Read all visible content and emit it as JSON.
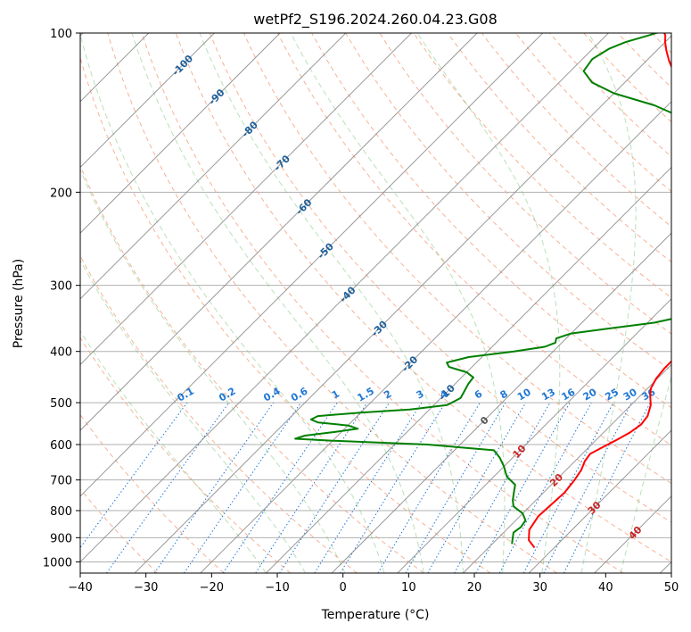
{
  "chart_data": {
    "type": "line",
    "diagram": "skew-t log-p",
    "title": "wetPf2_S196.2024.260.04.23.G08",
    "xlabel": "Temperature (°C)",
    "ylabel": "Pressure (hPa)",
    "xlim": [
      -40,
      50
    ],
    "ylim": [
      1050,
      100
    ],
    "y_scale": "log",
    "grid": true,
    "x_ticks": [
      -40,
      -30,
      -20,
      -10,
      0,
      10,
      20,
      30,
      40,
      50
    ],
    "y_ticks": [
      100,
      200,
      300,
      400,
      500,
      600,
      700,
      800,
      900,
      1000
    ],
    "isotherm_labels": [
      "-100",
      "-90",
      "-80",
      "-70",
      "-60",
      "-50",
      "-40",
      "-30",
      "-20",
      "-10",
      "0",
      "10",
      "20",
      "30",
      "40"
    ],
    "mixing_ratio_labels": [
      "0.1",
      "0.2",
      "0.4",
      "0.6",
      "1",
      "1.5",
      "2",
      "3",
      "4",
      "6",
      "8",
      "10",
      "13",
      "16",
      "20",
      "25",
      "30",
      "36"
    ],
    "series": [
      {
        "key": "temperature",
        "color": "#ff0000",
        "points": [
          [
            27.0,
            940
          ],
          [
            25.0,
            910
          ],
          [
            23.5,
            870
          ],
          [
            22.8,
            820
          ],
          [
            23.0,
            780
          ],
          [
            23.2,
            740
          ],
          [
            22.8,
            700
          ],
          [
            22.3,
            670
          ],
          [
            21.5,
            645
          ],
          [
            21.2,
            625
          ],
          [
            22.2,
            605
          ],
          [
            23.0,
            590
          ],
          [
            24.0,
            570
          ],
          [
            24.5,
            550
          ],
          [
            24.2,
            530
          ],
          [
            23.0,
            505
          ],
          [
            21.5,
            485
          ],
          [
            20.5,
            470
          ],
          [
            19.8,
            450
          ],
          [
            19.5,
            430
          ],
          [
            19.5,
            410
          ],
          [
            19.2,
            395
          ],
          [
            18.5,
            385
          ],
          [
            17.5,
            372
          ],
          [
            16.5,
            358
          ],
          [
            15.0,
            345
          ],
          [
            13.5,
            332
          ],
          [
            12.0,
            318
          ],
          [
            10.5,
            303
          ],
          [
            8.5,
            285
          ],
          [
            6.0,
            262
          ],
          [
            3.5,
            240
          ],
          [
            1.0,
            220
          ],
          [
            -1.5,
            205
          ],
          [
            -4.0,
            190
          ],
          [
            -6.5,
            177
          ],
          [
            -9.0,
            165
          ],
          [
            -11.5,
            155
          ],
          [
            -14.5,
            145
          ],
          [
            -17.5,
            135
          ],
          [
            -20.5,
            127
          ],
          [
            -23.5,
            120
          ],
          [
            -26.5,
            113
          ],
          [
            -28.5,
            108
          ],
          [
            -30.0,
            104
          ],
          [
            -31.0,
            101
          ],
          [
            -32.0,
            99
          ]
        ]
      },
      {
        "key": "dewpoint",
        "color": "#008000",
        "points": [
          [
            23.0,
            925
          ],
          [
            22.5,
            910
          ],
          [
            22.0,
            895
          ],
          [
            21.5,
            880
          ],
          [
            21.8,
            860
          ],
          [
            21.5,
            835
          ],
          [
            20.0,
            810
          ],
          [
            17.5,
            785
          ],
          [
            16.5,
            765
          ],
          [
            15.5,
            740
          ],
          [
            14.5,
            715
          ],
          [
            12.0,
            690
          ],
          [
            10.0,
            660
          ],
          [
            8.0,
            635
          ],
          [
            6.0,
            615
          ],
          [
            -5.0,
            600
          ],
          [
            -20.0,
            590
          ],
          [
            -26.0,
            585
          ],
          [
            -25.0,
            577
          ],
          [
            -21.0,
            568
          ],
          [
            -18.0,
            560
          ],
          [
            -20.0,
            552
          ],
          [
            -25.0,
            545
          ],
          [
            -26.5,
            538
          ],
          [
            -26.0,
            530
          ],
          [
            -20.0,
            522
          ],
          [
            -13.0,
            515
          ],
          [
            -8.0,
            505
          ],
          [
            -7.0,
            490
          ],
          [
            -7.5,
            475
          ],
          [
            -8.0,
            460
          ],
          [
            -8.2,
            448
          ],
          [
            -10.0,
            438
          ],
          [
            -13.5,
            428
          ],
          [
            -14.5,
            420
          ],
          [
            -12.0,
            410
          ],
          [
            -6.0,
            400
          ],
          [
            -2.0,
            392
          ],
          [
            -1.0,
            385
          ],
          [
            -1.5,
            378
          ],
          [
            0.0,
            370
          ],
          [
            5.0,
            362
          ],
          [
            11.0,
            353
          ],
          [
            15.0,
            342
          ],
          [
            14.5,
            332
          ],
          [
            12.5,
            318
          ],
          [
            10.5,
            303
          ],
          [
            8.5,
            285
          ],
          [
            6.0,
            262
          ],
          [
            3.5,
            240
          ],
          [
            1.0,
            220
          ],
          [
            -1.5,
            205
          ],
          [
            -4.0,
            190
          ],
          [
            -7.0,
            177
          ],
          [
            -9.5,
            165
          ],
          [
            -12.0,
            155
          ],
          [
            -15.5,
            145
          ],
          [
            -22.0,
            137
          ],
          [
            -30.0,
            130
          ],
          [
            -35.0,
            124
          ],
          [
            -38.0,
            118
          ],
          [
            -38.5,
            112
          ],
          [
            -37.5,
            107
          ],
          [
            -36.0,
            104
          ],
          [
            -33.5,
            101
          ],
          [
            -32.0,
            99
          ]
        ]
      }
    ],
    "colors": {
      "dry_adiabat": "#f4a582",
      "moist_adiabat": "#66bb66",
      "mixing_ratio": "#1f77d4",
      "isotherm": "#888888",
      "isotherm_label": "#1f5f99",
      "freezing_label": "#555555",
      "positive_isotherm_label": "#cc2222",
      "temperature_line": "#ff0000",
      "dewpoint_line": "#008000",
      "grid": "#b0b0b0"
    }
  }
}
